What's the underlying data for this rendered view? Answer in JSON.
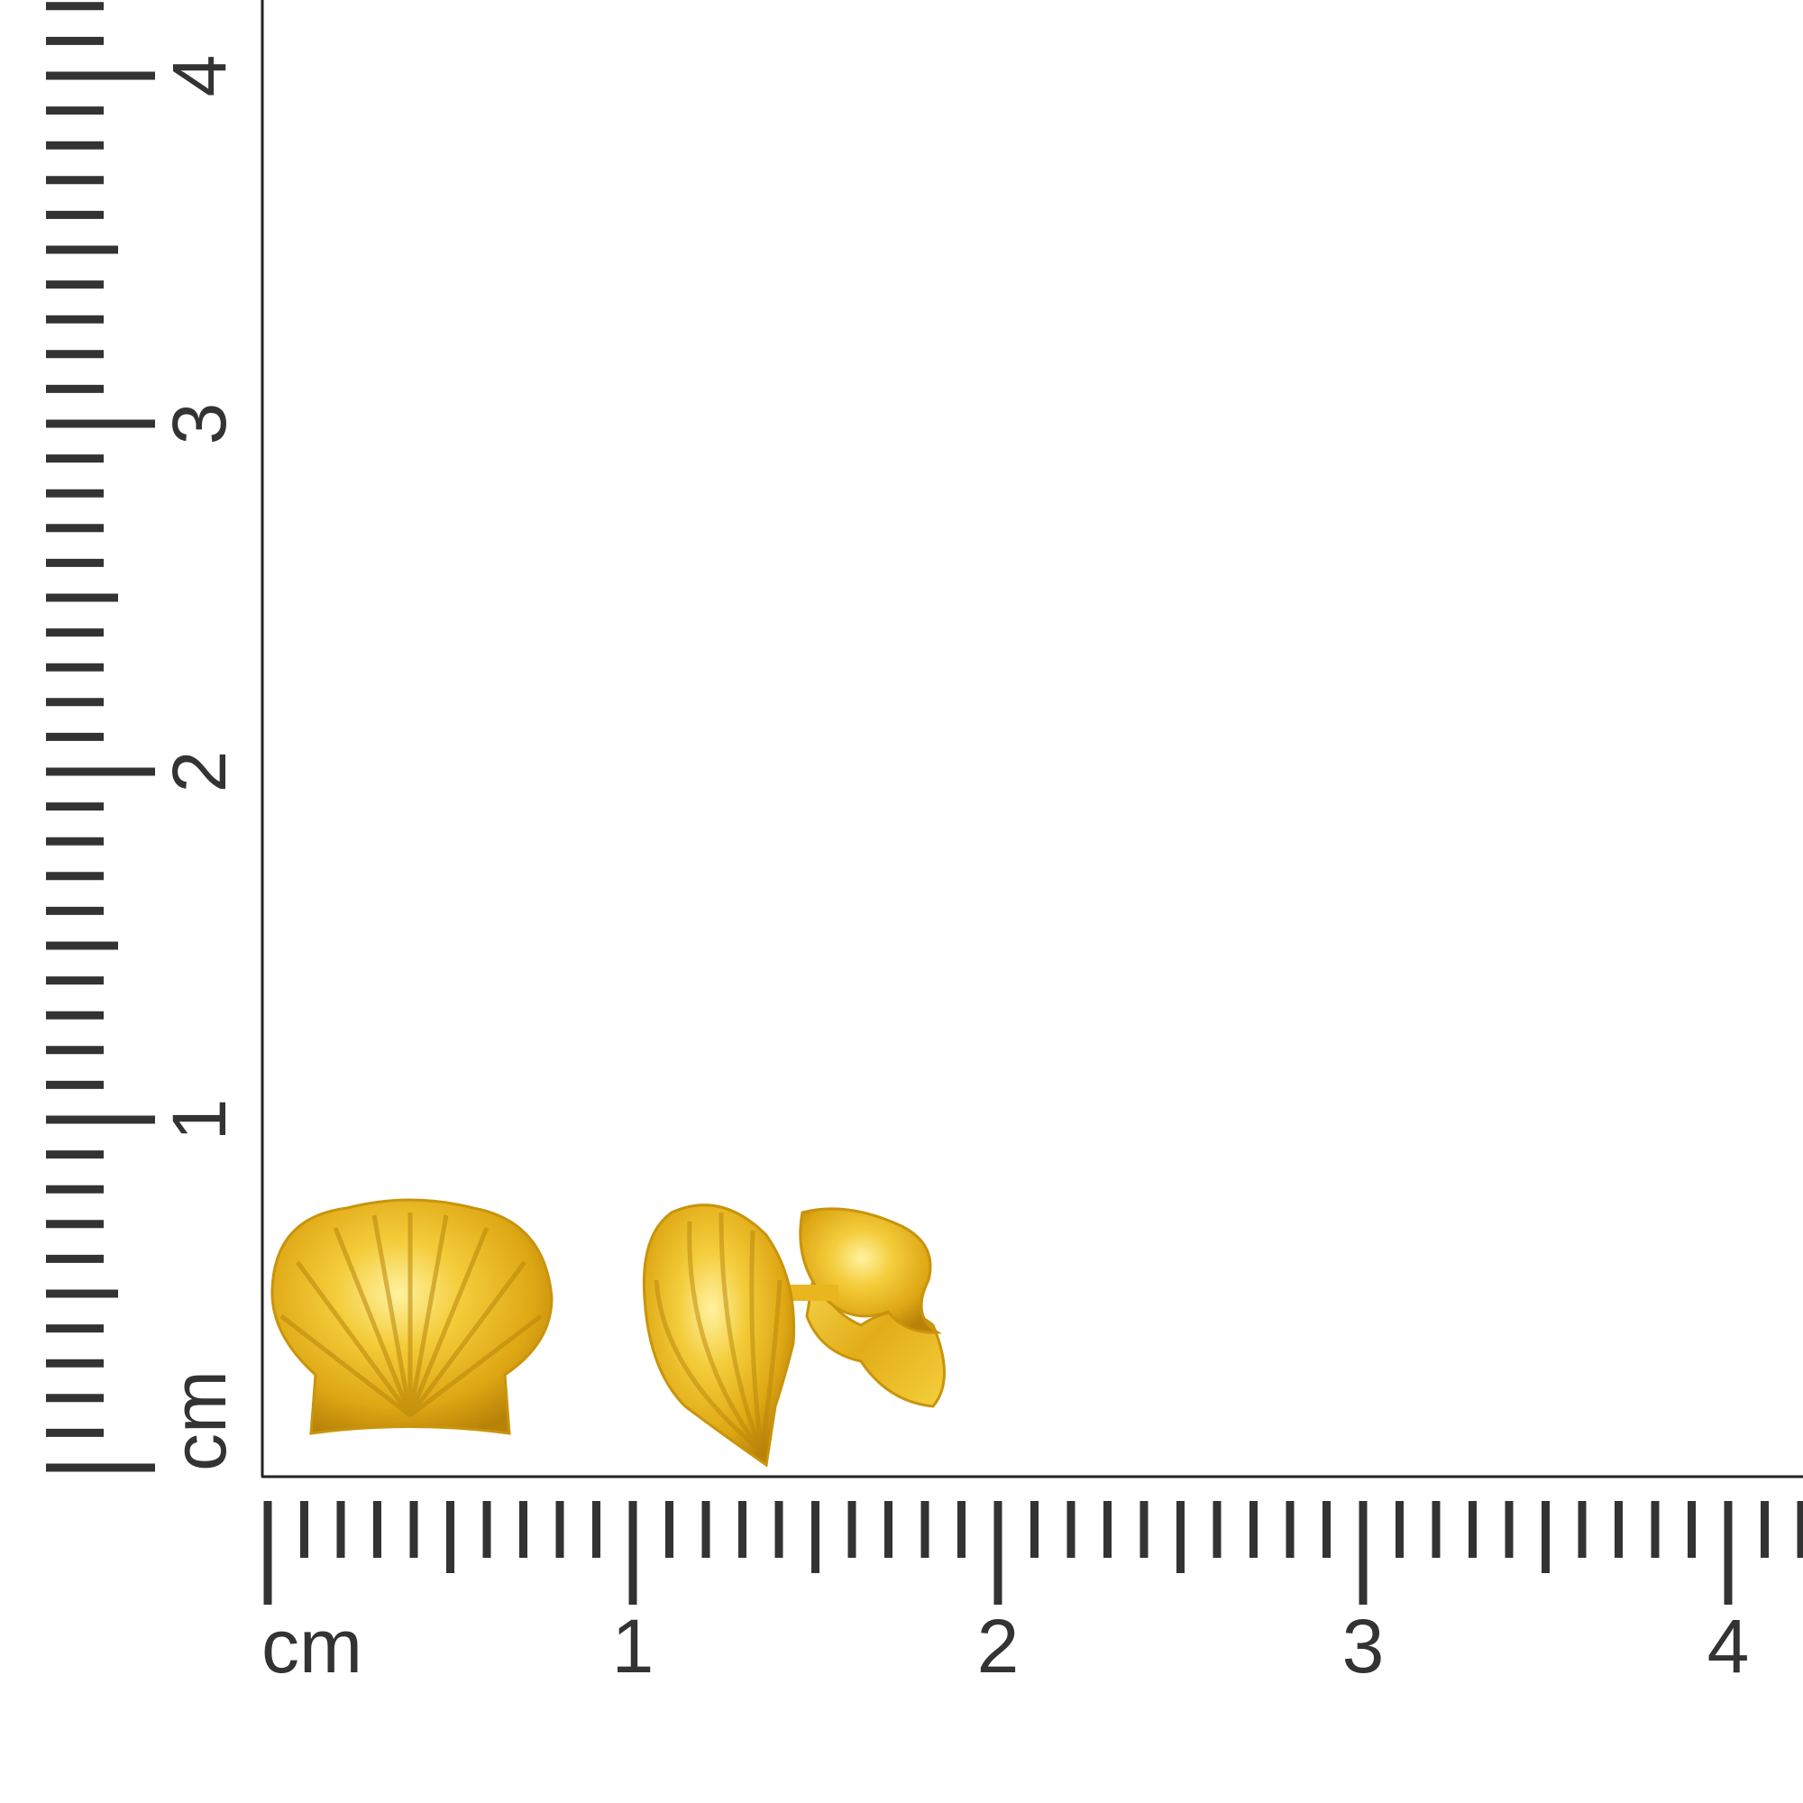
{
  "ruler": {
    "unit_label": "cm",
    "bottom_labels": [
      "1",
      "2",
      "3",
      "4"
    ],
    "left_labels": [
      "1",
      "2",
      "3",
      "4"
    ],
    "tick_color": "#333333"
  },
  "product": {
    "metal_color": "#e6b422",
    "items": [
      "shell-stud-front",
      "shell-stud-side"
    ]
  }
}
